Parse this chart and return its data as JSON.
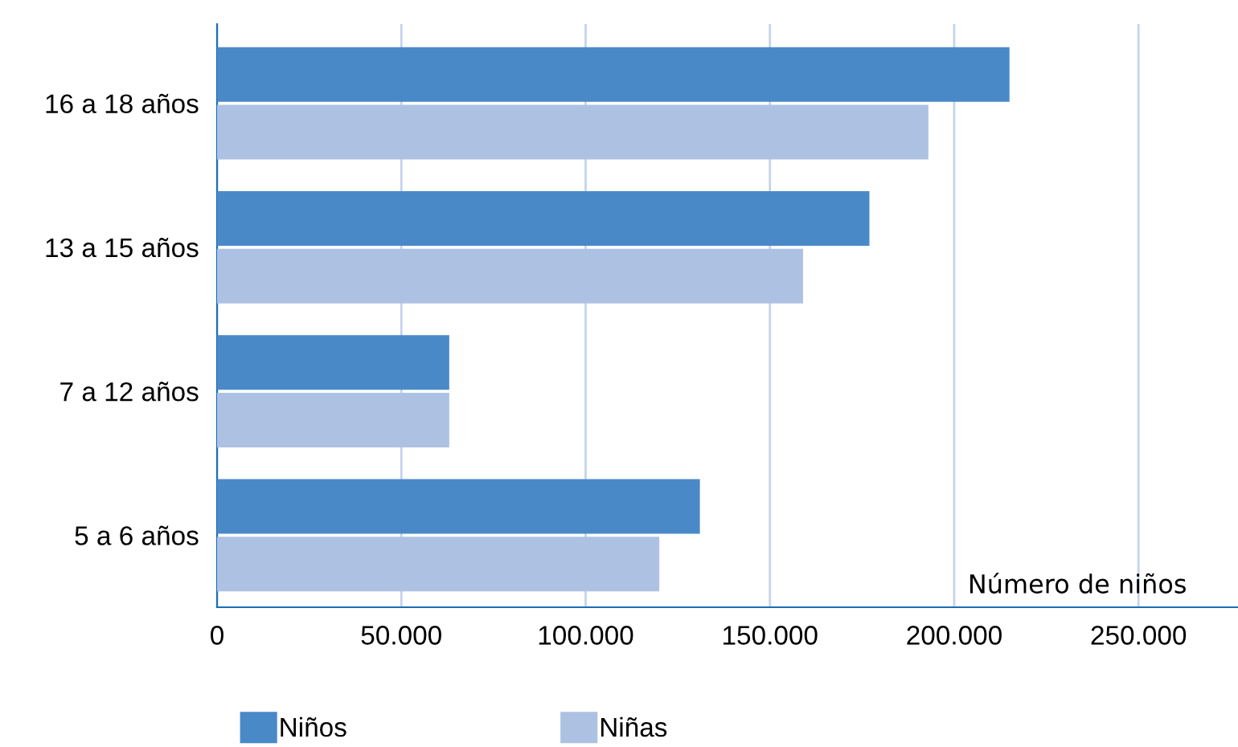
{
  "chart_data": {
    "type": "bar",
    "orientation": "horizontal",
    "categories": [
      "16 a 18 años",
      "13 a 15 años",
      "7 a 12 años",
      "5 a 6 años"
    ],
    "series": [
      {
        "name": "Niños",
        "color": "#4a89c8",
        "values": [
          215000,
          177000,
          63000,
          131000
        ]
      },
      {
        "name": "Niñas",
        "color": "#adc2e3",
        "values": [
          193000,
          159000,
          63000,
          120000
        ]
      }
    ],
    "xlabel": "Número de niños",
    "xlim": [
      0,
      277000
    ],
    "xticks": [
      0,
      {
        "value": 50000,
        "label": "50.000"
      },
      {
        "value": 100000,
        "label": "100.000"
      },
      {
        "value": 150000,
        "label": "150.000"
      },
      {
        "value": 200000,
        "label": "200.000"
      },
      {
        "value": 250000,
        "label": "250.000"
      }
    ],
    "grid": "x",
    "legend": "bottom"
  }
}
